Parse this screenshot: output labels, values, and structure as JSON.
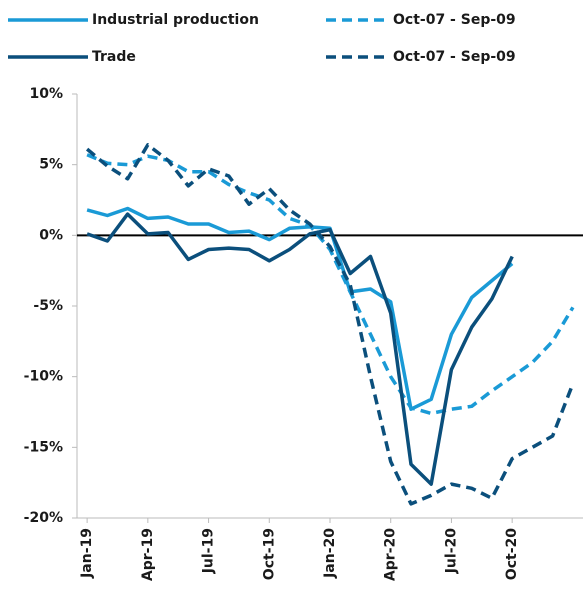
{
  "chart_data": {
    "type": "line",
    "categories": [
      "Jan-19",
      null,
      null,
      "Apr-19",
      null,
      null,
      "Jul-19",
      null,
      null,
      "Oct-19",
      null,
      null,
      "Jan-20",
      null,
      null,
      "Apr-20",
      null,
      null,
      "Jul-20",
      null,
      null,
      "Oct-20",
      null,
      null,
      null
    ],
    "series": [
      {
        "name": "Industrial production",
        "color": "#1a9ad6",
        "dashed": false,
        "values": [
          1.8,
          1.4,
          1.9,
          1.2,
          1.3,
          0.8,
          0.8,
          0.2,
          0.3,
          -0.3,
          0.5,
          0.6,
          0.5,
          -4.0,
          -3.8,
          -4.7,
          -12.3,
          -11.6,
          -7.0,
          -4.4,
          -3.2,
          -2.0,
          null,
          null,
          null
        ]
      },
      {
        "name": "Oct-07 - Sep-09",
        "color": "#1a9ad6",
        "dashed": true,
        "values": [
          5.7,
          5.1,
          5.0,
          5.6,
          5.3,
          4.5,
          4.5,
          3.6,
          3.0,
          2.5,
          1.2,
          0.7,
          -1.0,
          -4.0,
          -7.0,
          -10.0,
          -12.2,
          -12.6,
          -12.3,
          -12.1,
          -11.0,
          -10.0,
          -9.0,
          -7.5,
          -5.1
        ]
      },
      {
        "name": "Trade",
        "color": "#0b4f7c",
        "dashed": false,
        "values": [
          0.1,
          -0.4,
          1.5,
          0.1,
          0.2,
          -1.7,
          -1.0,
          -0.9,
          -1.0,
          -1.8,
          -1.0,
          0.1,
          0.4,
          -2.7,
          -1.5,
          -5.5,
          -16.2,
          -17.6,
          -9.5,
          -6.5,
          -4.5,
          -1.5,
          null,
          null,
          null
        ]
      },
      {
        "name": "Oct-07 - Sep-09",
        "color": "#0b4f7c",
        "dashed": true,
        "values": [
          6.1,
          4.9,
          4.0,
          6.4,
          5.3,
          3.5,
          4.7,
          4.2,
          2.2,
          3.3,
          1.8,
          0.8,
          -0.8,
          -3.5,
          -10.0,
          -16.0,
          -19.0,
          -18.4,
          -17.6,
          -17.9,
          -18.6,
          -15.8,
          -15.0,
          -14.2,
          -10.5
        ]
      }
    ],
    "ylim": [
      -20,
      10
    ],
    "yticks": [
      {
        "value": 10,
        "label": "10%"
      },
      {
        "value": 5,
        "label": "5%"
      },
      {
        "value": 0,
        "label": "0%"
      },
      {
        "value": -5,
        "label": "-5%"
      },
      {
        "value": -10,
        "label": "-10%"
      },
      {
        "value": -15,
        "label": "-15%"
      },
      {
        "value": -20,
        "label": "-20%"
      }
    ],
    "grid": false,
    "zero_line": true,
    "legend": "top"
  }
}
